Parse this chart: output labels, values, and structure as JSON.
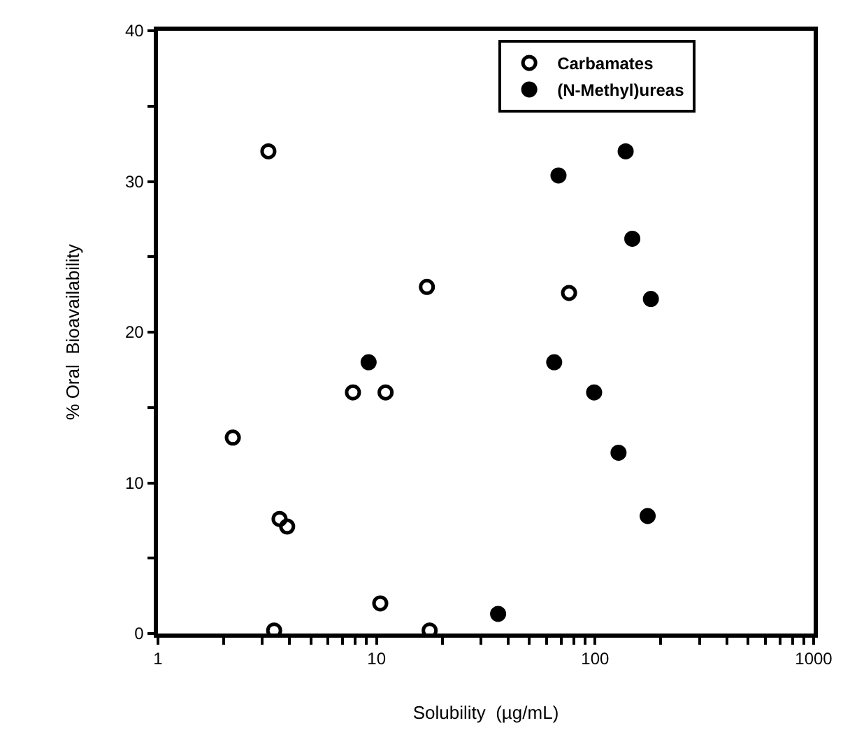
{
  "chart_data": {
    "type": "scatter",
    "xlabel": "Solubility  (µg/mL)",
    "ylabel": "% Oral  Bioavailability",
    "log": "x",
    "xlim": [
      1,
      1000
    ],
    "ylim": [
      0,
      40
    ],
    "xticks": [
      1,
      {
        "value": 2,
        "label": null
      },
      {
        "value": 3,
        "label": null
      },
      {
        "value": 4,
        "label": null
      },
      {
        "value": 5,
        "label": null
      },
      {
        "value": 6,
        "label": null
      },
      {
        "value": 7,
        "label": null
      },
      {
        "value": 8,
        "label": null
      },
      {
        "value": 9,
        "label": null
      },
      10,
      {
        "value": 20,
        "label": null
      },
      {
        "value": 30,
        "label": null
      },
      {
        "value": 40,
        "label": null
      },
      {
        "value": 50,
        "label": null
      },
      {
        "value": 60,
        "label": null
      },
      {
        "value": 70,
        "label": null
      },
      {
        "value": 80,
        "label": null
      },
      {
        "value": 90,
        "label": null
      },
      100,
      {
        "value": 200,
        "label": null
      },
      {
        "value": 300,
        "label": null
      },
      {
        "value": 400,
        "label": null
      },
      {
        "value": 500,
        "label": null
      },
      {
        "value": 600,
        "label": null
      },
      {
        "value": 700,
        "label": null
      },
      {
        "value": 800,
        "label": null
      },
      {
        "value": 900,
        "label": null
      },
      1000
    ],
    "yticks": [
      0,
      {
        "value": 5,
        "label": null
      },
      10,
      {
        "value": 15,
        "label": null
      },
      20,
      {
        "value": 25,
        "label": null
      },
      30,
      {
        "value": 35,
        "label": null
      },
      40
    ],
    "legend": "top right",
    "series": [
      {
        "name": "Carbamates",
        "color": "#000000",
        "marker": "circle-open",
        "x": [
          3.2,
          2.2,
          3.6,
          3.9,
          3.4,
          7.8,
          11,
          10.4,
          17,
          17.5,
          76
        ],
        "values": [
          32,
          13,
          7.6,
          7.1,
          0.2,
          16,
          16,
          2,
          23,
          0.2,
          22.6
        ]
      },
      {
        "name": "(N-Methyl)ureas",
        "color": "#000000",
        "marker": "circle",
        "x": [
          9.2,
          138,
          68,
          148,
          180,
          65,
          99,
          128,
          174,
          36
        ],
        "values": [
          18,
          32,
          30.4,
          26.2,
          22.2,
          18,
          16,
          12,
          7.8,
          1.3
        ]
      }
    ]
  }
}
